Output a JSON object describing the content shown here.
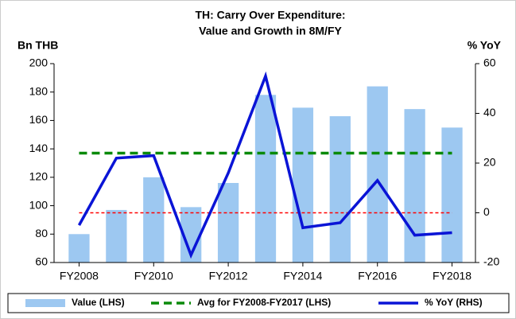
{
  "chart_data": {
    "type": "bar_line",
    "title": [
      "TH: Carry Over Expenditure:",
      "Value and Growth in 8M/FY"
    ],
    "y_label": "Bn THB",
    "y2_label": "% YoY",
    "categories": [
      "FY2008",
      null,
      "FY2010",
      null,
      "FY2012",
      null,
      "FY2014",
      null,
      "FY2016",
      null,
      "FY2018"
    ],
    "series": [
      {
        "name": "Value (LHS)",
        "type": "bar",
        "color": "#9dc8f1",
        "axis": "y",
        "values": [
          80,
          97,
          120,
          99,
          116,
          178,
          169,
          163,
          184,
          168,
          155
        ]
      },
      {
        "name": "Avg for FY2008-FY2017 (LHS)",
        "type": "dashed",
        "color": "#0a8a0a",
        "axis": "y",
        "values": [
          137,
          137,
          137,
          137,
          137,
          137,
          137,
          137,
          137,
          137,
          137
        ]
      },
      {
        "name": "% YoY (RHS)",
        "type": "line",
        "color": "#0a14d6",
        "axis": "y2",
        "values": [
          -5,
          22,
          23,
          -17,
          16,
          55,
          -6,
          -4,
          13,
          -9,
          -8
        ]
      }
    ],
    "reference_line": {
      "value": 0,
      "axis": "y2",
      "color": "#ff0000"
    },
    "ylim": [
      60,
      200
    ],
    "yticks": [
      60,
      80,
      100,
      120,
      140,
      160,
      180,
      200
    ],
    "y2lim": [
      -20,
      60
    ],
    "y2ticks": [
      -20,
      0,
      20,
      40,
      60
    ],
    "legend": "bottom"
  }
}
